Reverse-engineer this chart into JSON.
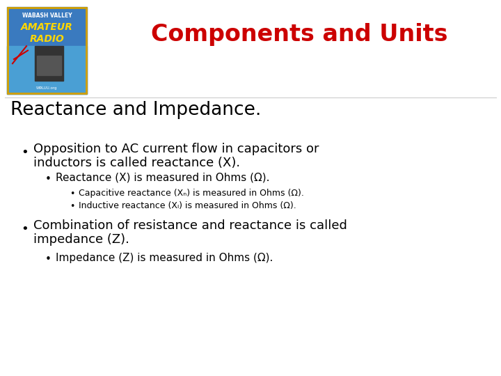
{
  "title": "Components and Units",
  "title_color": "#cc0000",
  "title_fontsize": 24,
  "background_color": "#ffffff",
  "section_heading": "Reactance and Impedance.",
  "section_heading_fontsize": 19,
  "section_heading_color": "#000000",
  "bullet1_line1": "Opposition to AC current flow in capacitors or",
  "bullet1_line2": "inductors is called reactance (X).",
  "bullet1_fontsize": 13,
  "bullet2_text": "Reactance (X) is measured in Ohms (Ω).",
  "bullet2_fontsize": 11,
  "bullet3a_text": "Capacitive reactance (Xₙ) is measured in Ohms (Ω).",
  "bullet3b_text": "Inductive reactance (Xₗ) is measured in Ohms (Ω).",
  "small_fontsize": 9,
  "bullet4_line1": "Combination of resistance and reactance is called",
  "bullet4_line2": "impedance (Z).",
  "bullet4_fontsize": 13,
  "bullet5_text": "Impedance (Z) is measured in Ohms (Ω).",
  "bullet5_fontsize": 11,
  "text_color": "#000000",
  "logo_bg": "#1a5fa8",
  "logo_text1": "WABASH VALLEY",
  "logo_text2": "AMATEUR",
  "logo_text3": "RADIO",
  "logo_bottom": "W9LUU.org"
}
